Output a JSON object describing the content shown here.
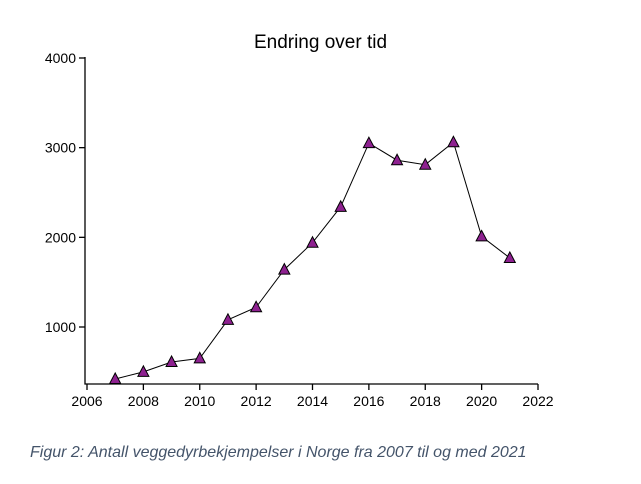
{
  "figure": {
    "caption": "Figur 2: Antall veggedyrbekjempelser i Norge fra 2007 til og med 2021"
  },
  "chart_data": {
    "type": "line",
    "title": "Endring over tid",
    "x": [
      2007,
      2008,
      2009,
      2010,
      2011,
      2012,
      2013,
      2014,
      2015,
      2016,
      2017,
      2018,
      2019,
      2020,
      2021
    ],
    "values": [
      420,
      500,
      610,
      650,
      1080,
      1220,
      1640,
      1940,
      2340,
      3050,
      2860,
      2810,
      3060,
      2010,
      1770
    ],
    "xlabel": "",
    "ylabel": "",
    "xlim": [
      2006,
      2022
    ],
    "ylim": [
      400,
      4000
    ],
    "x_ticks": [
      2006,
      2008,
      2010,
      2012,
      2014,
      2016,
      2018,
      2020,
      2022
    ],
    "y_ticks": [
      1000,
      2000,
      3000,
      4000
    ],
    "grid": false,
    "legend": false,
    "marker": "triangle-up",
    "marker_color": "#8e2190",
    "marker_edge_color": "#000000",
    "line_color": "#000000",
    "axis_color": "#000000",
    "tick_label_color": "#000000"
  }
}
